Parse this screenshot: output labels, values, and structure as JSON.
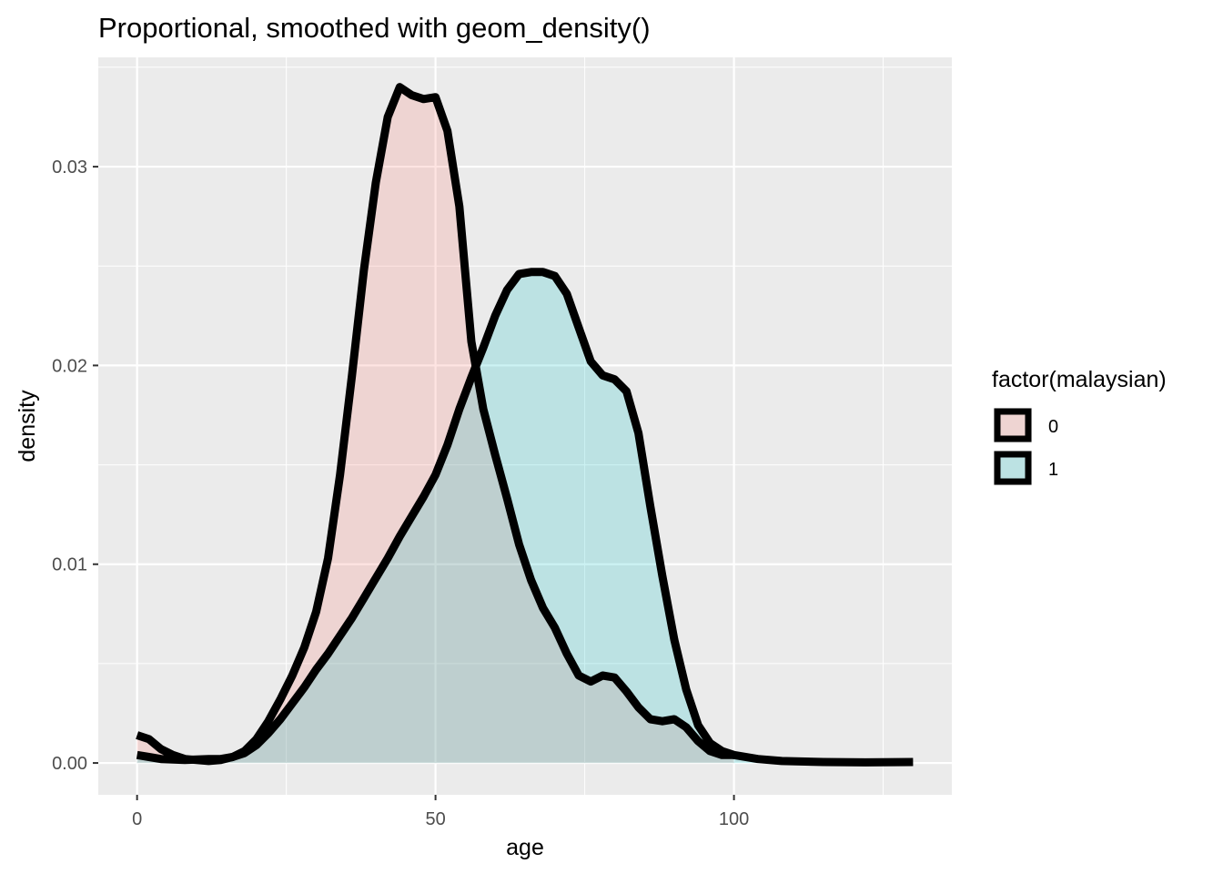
{
  "chart_data": {
    "type": "area",
    "title": "Proportional, smoothed with geom_density()",
    "xlabel": "age",
    "ylabel": "density",
    "xlim": [
      -6.5,
      136.5
    ],
    "ylim": [
      -0.0016,
      0.0355
    ],
    "x_ticks": [
      0,
      50,
      100
    ],
    "x_tick_labels": [
      "0",
      "50",
      "100"
    ],
    "y_ticks": [
      0.0,
      0.01,
      0.02,
      0.03
    ],
    "y_tick_labels": [
      "0.00",
      "0.01",
      "0.02",
      "0.03"
    ],
    "grid": true,
    "legend": {
      "title": "factor(malaysian)",
      "placement": "right",
      "entries": [
        "0",
        "1"
      ]
    },
    "series": [
      {
        "name": "0",
        "fill": "#F8766D",
        "fill_alpha": 0.2,
        "stroke": "#000000",
        "points": [
          [
            0,
            0.0014
          ],
          [
            2,
            0.0012
          ],
          [
            4,
            0.0007
          ],
          [
            6,
            0.0004
          ],
          [
            8,
            0.0002
          ],
          [
            10,
            0.00015
          ],
          [
            12,
            0.0001
          ],
          [
            14,
            0.00015
          ],
          [
            16,
            0.0003
          ],
          [
            18,
            0.0006
          ],
          [
            20,
            0.0012
          ],
          [
            22,
            0.0021
          ],
          [
            24,
            0.0032
          ],
          [
            26,
            0.0044
          ],
          [
            28,
            0.0058
          ],
          [
            30,
            0.0076
          ],
          [
            32,
            0.0103
          ],
          [
            34,
            0.0145
          ],
          [
            36,
            0.0195
          ],
          [
            38,
            0.0248
          ],
          [
            40,
            0.0292
          ],
          [
            42,
            0.0325
          ],
          [
            44,
            0.034
          ],
          [
            46,
            0.0336
          ],
          [
            48,
            0.0334
          ],
          [
            50,
            0.0335
          ],
          [
            52,
            0.0318
          ],
          [
            54,
            0.028
          ],
          [
            56,
            0.0212
          ],
          [
            58,
            0.0178
          ],
          [
            60,
            0.0155
          ],
          [
            62,
            0.0133
          ],
          [
            64,
            0.011
          ],
          [
            66,
            0.0092
          ],
          [
            68,
            0.0078
          ],
          [
            70,
            0.0068
          ],
          [
            72,
            0.0055
          ],
          [
            74,
            0.0044
          ],
          [
            76,
            0.0041
          ],
          [
            78,
            0.0044
          ],
          [
            80,
            0.0043
          ],
          [
            82,
            0.0036
          ],
          [
            84,
            0.0028
          ],
          [
            86,
            0.0022
          ],
          [
            88,
            0.0021
          ],
          [
            90,
            0.0022
          ],
          [
            92,
            0.0018
          ],
          [
            94,
            0.0011
          ],
          [
            96,
            0.0006
          ],
          [
            98,
            0.0004
          ],
          [
            100,
            0.0004
          ]
        ]
      },
      {
        "name": "1",
        "fill": "#00BFC4",
        "fill_alpha": 0.2,
        "stroke": "#000000",
        "points": [
          [
            0,
            0.0004
          ],
          [
            2,
            0.0003
          ],
          [
            4,
            0.0002
          ],
          [
            8,
            0.00015
          ],
          [
            12,
            0.0002
          ],
          [
            14,
            0.0002
          ],
          [
            16,
            0.0003
          ],
          [
            18,
            0.0005
          ],
          [
            20,
            0.0009
          ],
          [
            22,
            0.0015
          ],
          [
            24,
            0.0022
          ],
          [
            26,
            0.003
          ],
          [
            28,
            0.0038
          ],
          [
            30,
            0.0047
          ],
          [
            32,
            0.0055
          ],
          [
            34,
            0.0064
          ],
          [
            36,
            0.0073
          ],
          [
            38,
            0.0083
          ],
          [
            40,
            0.0093
          ],
          [
            42,
            0.0103
          ],
          [
            44,
            0.0114
          ],
          [
            46,
            0.0124
          ],
          [
            48,
            0.0134
          ],
          [
            50,
            0.0145
          ],
          [
            52,
            0.016
          ],
          [
            54,
            0.0178
          ],
          [
            56,
            0.0194
          ],
          [
            58,
            0.0209
          ],
          [
            60,
            0.0225
          ],
          [
            62,
            0.0238
          ],
          [
            64,
            0.0246
          ],
          [
            66,
            0.0247
          ],
          [
            68,
            0.0247
          ],
          [
            70,
            0.0245
          ],
          [
            72,
            0.0236
          ],
          [
            74,
            0.0219
          ],
          [
            76,
            0.0202
          ],
          [
            78,
            0.0195
          ],
          [
            80,
            0.0193
          ],
          [
            82,
            0.0187
          ],
          [
            84,
            0.0166
          ],
          [
            86,
            0.0129
          ],
          [
            88,
            0.0094
          ],
          [
            90,
            0.0062
          ],
          [
            92,
            0.0037
          ],
          [
            94,
            0.0019
          ],
          [
            96,
            0.001
          ],
          [
            98,
            0.0006
          ],
          [
            100,
            0.0004
          ],
          [
            104,
            0.0002
          ],
          [
            108,
            0.0001
          ],
          [
            115,
            5e-05
          ],
          [
            122,
            3e-05
          ],
          [
            130,
            5e-05
          ]
        ]
      }
    ]
  }
}
